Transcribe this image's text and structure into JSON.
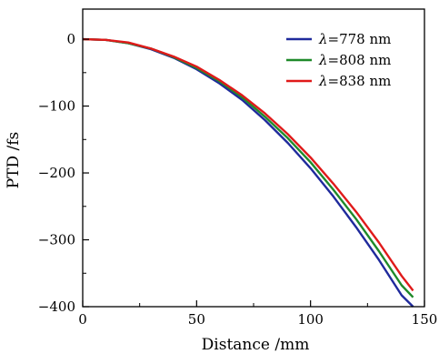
{
  "chart_data": {
    "type": "line",
    "title": "",
    "xlabel": "Distance /mm",
    "ylabel": "PTD /fs",
    "xlim": [
      0,
      150
    ],
    "ylim": [
      -400,
      45
    ],
    "xticks": [
      0,
      50,
      100,
      150
    ],
    "yticks": [
      0,
      -100,
      -200,
      -300,
      -400
    ],
    "xtick_labels": [
      "0",
      "50",
      "100",
      "150"
    ],
    "ytick_labels": [
      "0",
      "−100",
      "−200",
      "−300",
      "−400"
    ],
    "grid": false,
    "legend_position": "top-right",
    "x": [
      0,
      10,
      20,
      30,
      40,
      50,
      60,
      70,
      80,
      90,
      100,
      110,
      120,
      130,
      140,
      145
    ],
    "series": [
      {
        "name_prefix": "λ",
        "name_value": "=778 nm",
        "color": "#1f2a9c",
        "values": [
          0,
          -1,
          -6,
          -15,
          -28,
          -45,
          -66,
          -91,
          -121,
          -155,
          -193,
          -235,
          -281,
          -330,
          -383,
          -400
        ]
      },
      {
        "name_prefix": "λ",
        "name_value": "=808 nm",
        "color": "#1f8a2a",
        "values": [
          0,
          -1,
          -6,
          -14,
          -27,
          -43,
          -63,
          -87,
          -116,
          -148,
          -184,
          -225,
          -269,
          -317,
          -368,
          -386
        ]
      },
      {
        "name_prefix": "λ",
        "name_value": "=838 nm",
        "color": "#e01a1a",
        "values": [
          0,
          -1,
          -5,
          -14,
          -26,
          -41,
          -61,
          -84,
          -111,
          -142,
          -177,
          -216,
          -258,
          -304,
          -354,
          -376
        ]
      }
    ]
  }
}
